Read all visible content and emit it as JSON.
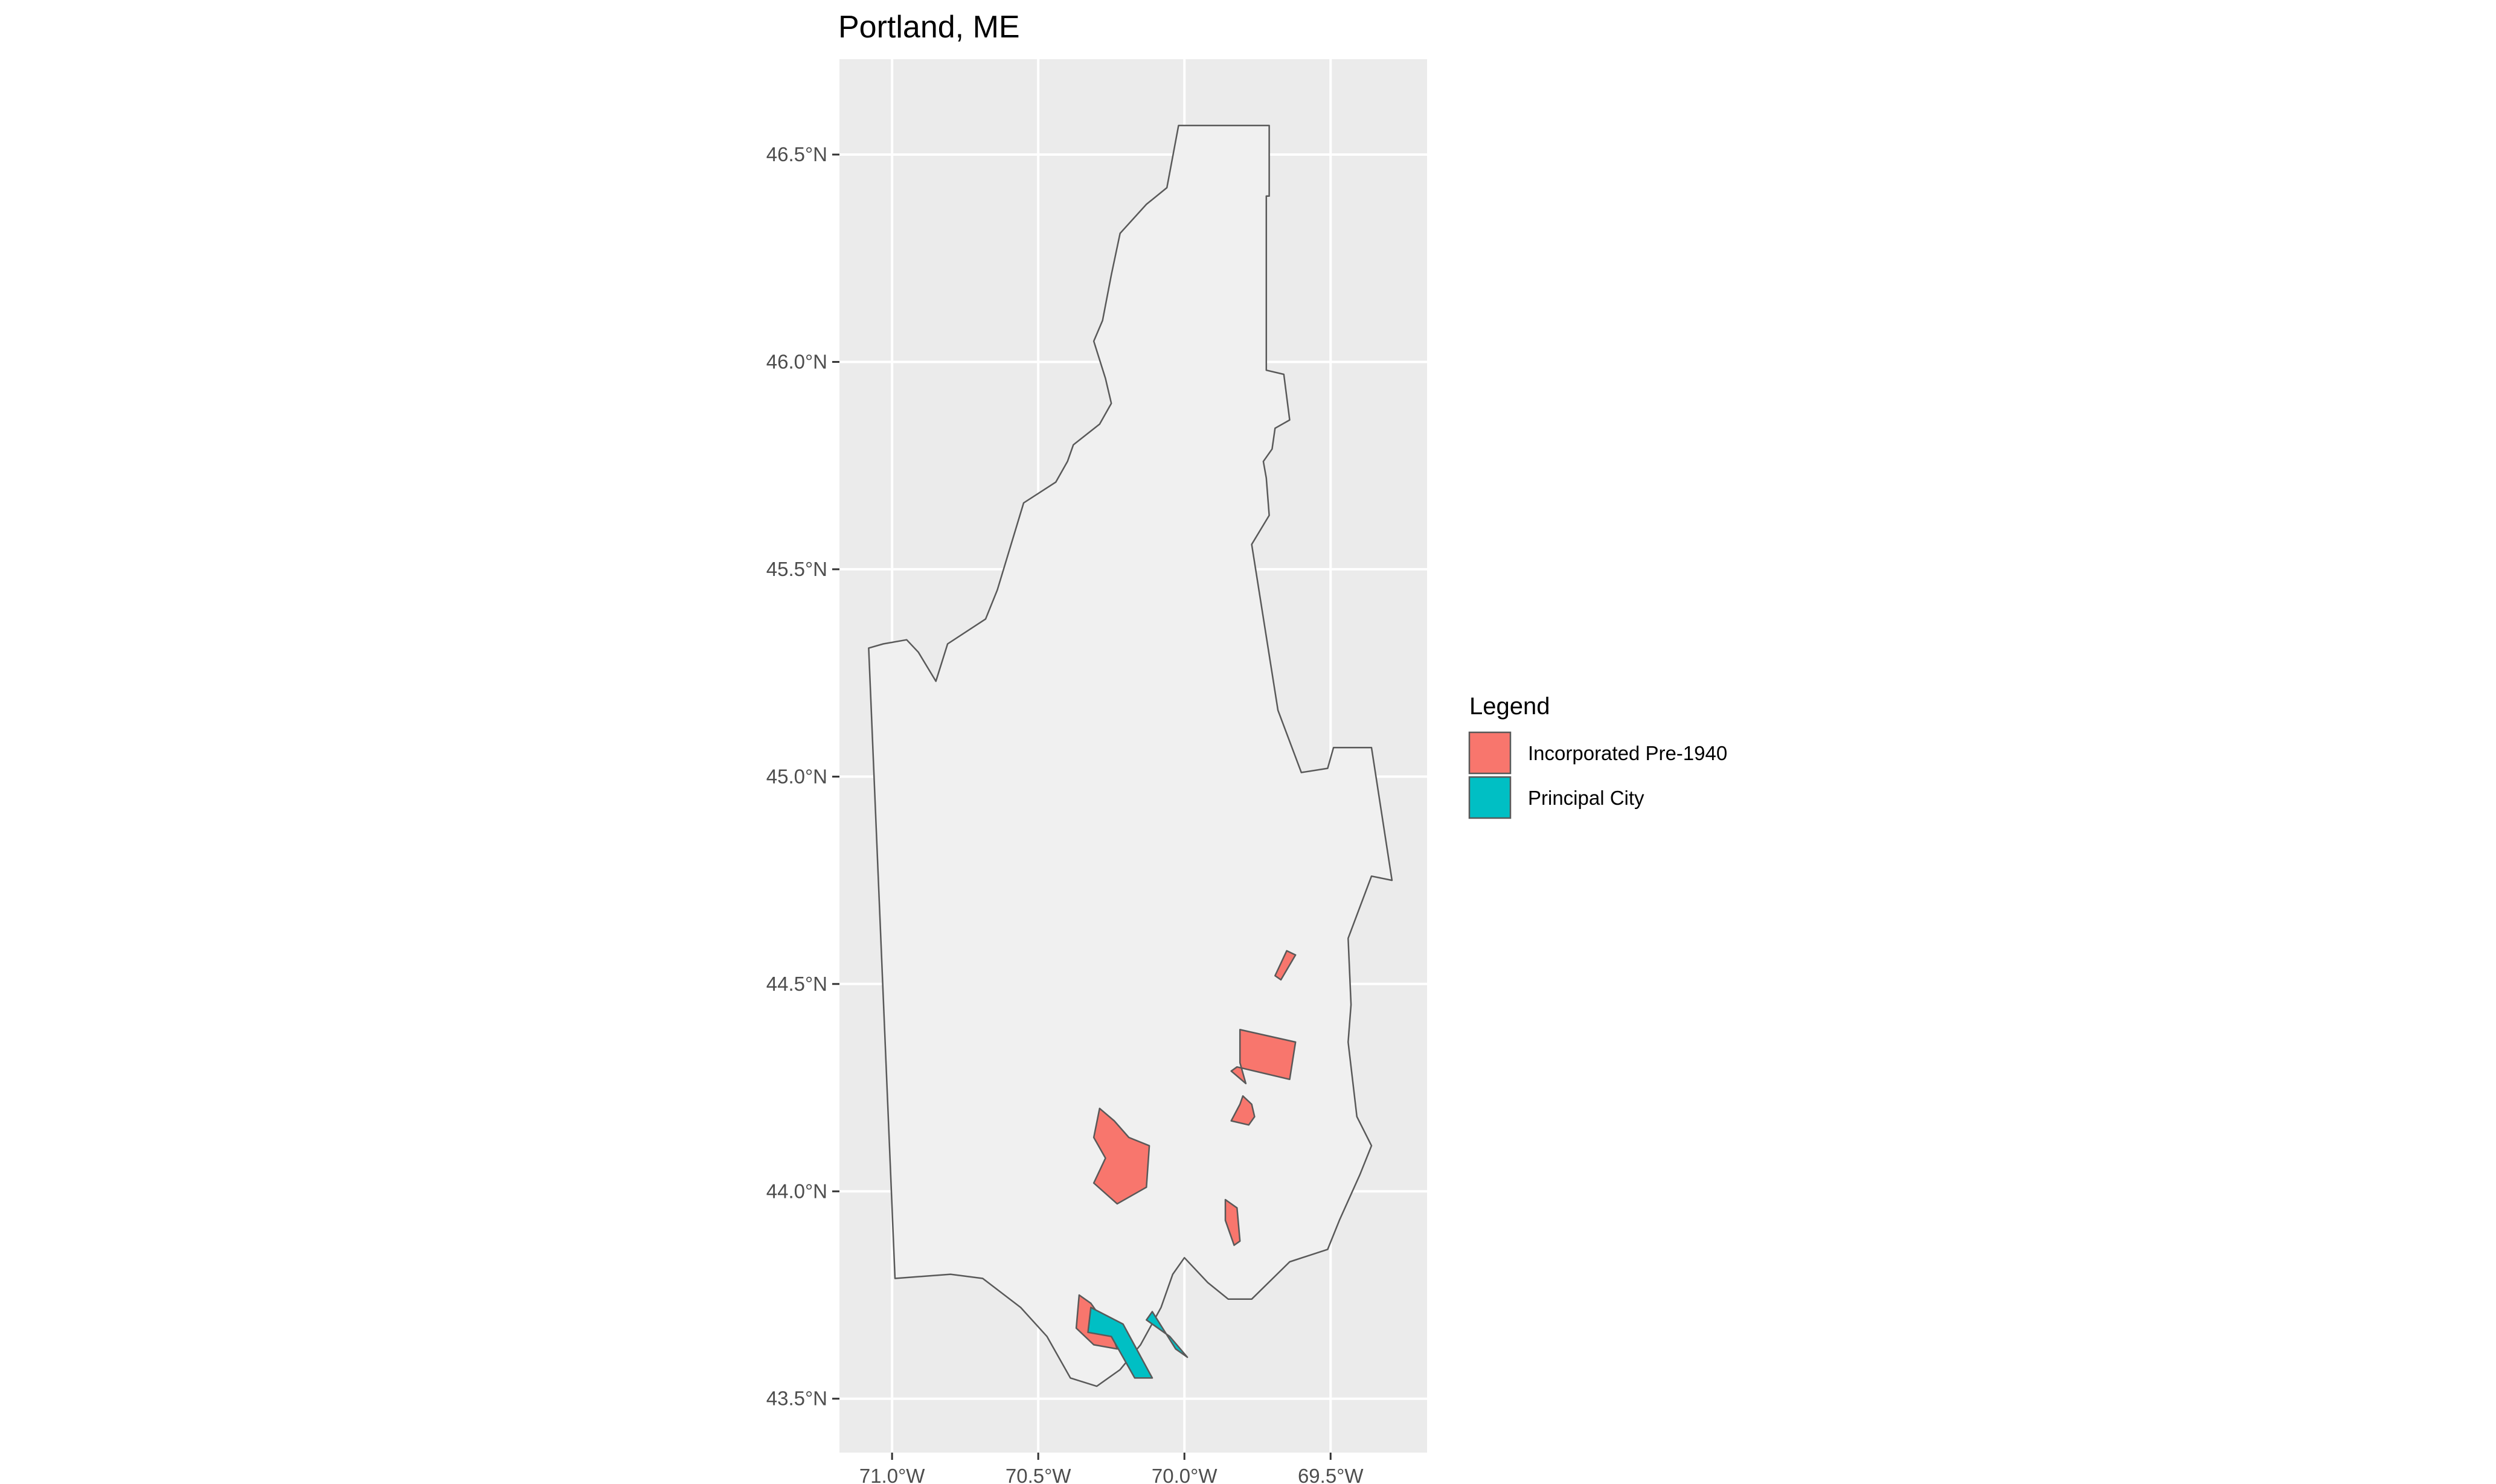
{
  "title": "Portland, ME",
  "map_extent": {
    "lon": [
      -71.18,
      -69.17
    ],
    "lat": [
      43.37,
      46.73
    ]
  },
  "axes": {
    "x_ticks": [
      {
        "lon": -71.0,
        "label": "71.0°W"
      },
      {
        "lon": -70.5,
        "label": "70.5°W"
      },
      {
        "lon": -70.0,
        "label": "70.0°W"
      },
      {
        "lon": -69.5,
        "label": "69.5°W"
      }
    ],
    "y_ticks": [
      {
        "lat": 43.5,
        "label": "43.5°N"
      },
      {
        "lat": 44.0,
        "label": "44.0°N"
      },
      {
        "lat": 44.5,
        "label": "44.5°N"
      },
      {
        "lat": 45.0,
        "label": "45.0°N"
      },
      {
        "lat": 45.5,
        "label": "45.5°N"
      },
      {
        "lat": 46.0,
        "label": "46.0°N"
      },
      {
        "lat": 46.5,
        "label": "46.5°N"
      }
    ]
  },
  "legend": {
    "title": "Legend",
    "items": [
      {
        "label": "Incorporated Pre-1940",
        "color": "#F8766D"
      },
      {
        "label": "Principal City",
        "color": "#00BFC4"
      }
    ]
  },
  "colors": {
    "panel_bg": "#EBEBEB",
    "region_fill": "#F0F0F0",
    "grid": "#FFFFFF",
    "outline": "#595959"
  },
  "chart_data": {
    "type": "map",
    "title": "Portland, ME",
    "xlim": [
      -71.18,
      -69.17
    ],
    "ylim": [
      43.37,
      46.73
    ],
    "grid": true,
    "legend_position": "right",
    "regions": [
      {
        "name": "Boundary",
        "role": "outline",
        "coords": [
          [
            -70.02,
            46.57
          ],
          [
            -69.71,
            46.57
          ],
          [
            -69.71,
            46.4
          ],
          [
            -69.72,
            46.4
          ],
          [
            -69.72,
            45.98
          ],
          [
            -69.66,
            45.97
          ],
          [
            -69.64,
            45.86
          ],
          [
            -69.69,
            45.84
          ],
          [
            -69.7,
            45.79
          ],
          [
            -69.73,
            45.76
          ],
          [
            -69.72,
            45.72
          ],
          [
            -69.71,
            45.63
          ],
          [
            -69.77,
            45.56
          ],
          [
            -69.68,
            45.16
          ],
          [
            -69.6,
            45.01
          ],
          [
            -69.51,
            45.02
          ],
          [
            -69.49,
            45.07
          ],
          [
            -69.36,
            45.07
          ],
          [
            -69.29,
            44.75
          ],
          [
            -69.36,
            44.76
          ],
          [
            -69.44,
            44.61
          ],
          [
            -69.43,
            44.45
          ],
          [
            -69.44,
            44.36
          ],
          [
            -69.41,
            44.18
          ],
          [
            -69.36,
            44.11
          ],
          [
            -69.4,
            44.04
          ],
          [
            -69.47,
            43.93
          ],
          [
            -69.51,
            43.86
          ],
          [
            -69.64,
            43.83
          ],
          [
            -69.77,
            43.74
          ],
          [
            -69.85,
            43.74
          ],
          [
            -69.92,
            43.78
          ],
          [
            -70.0,
            43.84
          ],
          [
            -70.04,
            43.8
          ],
          [
            -70.08,
            43.72
          ],
          [
            -70.15,
            43.63
          ],
          [
            -70.22,
            43.57
          ],
          [
            -70.3,
            43.53
          ],
          [
            -70.39,
            43.55
          ],
          [
            -70.47,
            43.65
          ],
          [
            -70.56,
            43.72
          ],
          [
            -70.69,
            43.79
          ],
          [
            -70.8,
            43.8
          ],
          [
            -70.99,
            43.79
          ],
          [
            -71.08,
            45.31
          ],
          [
            -71.03,
            45.32
          ],
          [
            -70.95,
            45.33
          ],
          [
            -70.91,
            45.3
          ],
          [
            -70.85,
            45.23
          ],
          [
            -70.81,
            45.32
          ],
          [
            -70.68,
            45.38
          ],
          [
            -70.64,
            45.45
          ],
          [
            -70.55,
            45.66
          ],
          [
            -70.44,
            45.71
          ],
          [
            -70.4,
            45.76
          ],
          [
            -70.38,
            45.8
          ],
          [
            -70.29,
            45.85
          ],
          [
            -70.25,
            45.9
          ],
          [
            -70.27,
            45.96
          ],
          [
            -70.31,
            46.05
          ],
          [
            -70.28,
            46.1
          ],
          [
            -70.25,
            46.21
          ],
          [
            -70.22,
            46.31
          ],
          [
            -70.13,
            46.38
          ],
          [
            -70.06,
            46.42
          ],
          [
            -70.02,
            46.57
          ]
        ]
      },
      {
        "name": "Incorporated Pre-1940",
        "role": "incorporated",
        "coords": [
          [
            -69.65,
            44.58
          ],
          [
            -69.62,
            44.57
          ],
          [
            -69.67,
            44.51
          ],
          [
            -69.69,
            44.52
          ]
        ]
      },
      {
        "name": "Incorporated Pre-1940",
        "role": "incorporated",
        "coords": [
          [
            -69.81,
            44.39
          ],
          [
            -69.62,
            44.36
          ],
          [
            -69.64,
            44.27
          ],
          [
            -69.82,
            44.3
          ],
          [
            -69.84,
            44.29
          ],
          [
            -69.79,
            44.26
          ],
          [
            -69.81,
            44.31
          ]
        ]
      },
      {
        "name": "Incorporated Pre-1940",
        "role": "incorporated",
        "coords": [
          [
            -69.8,
            44.23
          ],
          [
            -69.77,
            44.21
          ],
          [
            -69.76,
            44.18
          ],
          [
            -69.78,
            44.16
          ],
          [
            -69.84,
            44.17
          ],
          [
            -69.81,
            44.21
          ]
        ]
      },
      {
        "name": "Incorporated Pre-1940",
        "role": "incorporated",
        "coords": [
          [
            -70.29,
            44.2
          ],
          [
            -70.24,
            44.17
          ],
          [
            -70.19,
            44.13
          ],
          [
            -70.12,
            44.11
          ],
          [
            -70.13,
            44.01
          ],
          [
            -70.23,
            43.97
          ],
          [
            -70.31,
            44.02
          ],
          [
            -70.27,
            44.08
          ],
          [
            -70.31,
            44.13
          ]
        ]
      },
      {
        "name": "Incorporated Pre-1940",
        "role": "incorporated",
        "coords": [
          [
            -69.86,
            43.98
          ],
          [
            -69.82,
            43.96
          ],
          [
            -69.81,
            43.88
          ],
          [
            -69.83,
            43.87
          ],
          [
            -69.86,
            43.93
          ]
        ]
      },
      {
        "name": "Incorporated Pre-1940",
        "role": "incorporated",
        "coords": [
          [
            -70.36,
            43.75
          ],
          [
            -70.32,
            43.73
          ],
          [
            -70.25,
            43.66
          ],
          [
            -70.23,
            43.62
          ],
          [
            -70.31,
            43.63
          ],
          [
            -70.37,
            43.67
          ]
        ]
      },
      {
        "name": "Principal City",
        "role": "principal",
        "coords": [
          [
            -70.32,
            43.72
          ],
          [
            -70.21,
            43.68
          ],
          [
            -70.11,
            43.55
          ],
          [
            -70.17,
            43.55
          ],
          [
            -70.25,
            43.65
          ],
          [
            -70.33,
            43.66
          ]
        ]
      },
      {
        "name": "Principal City",
        "role": "principal",
        "coords": [
          [
            -70.11,
            43.71
          ],
          [
            -70.03,
            43.62
          ],
          [
            -69.99,
            43.6
          ],
          [
            -70.05,
            43.65
          ],
          [
            -70.13,
            43.69
          ]
        ]
      }
    ]
  }
}
